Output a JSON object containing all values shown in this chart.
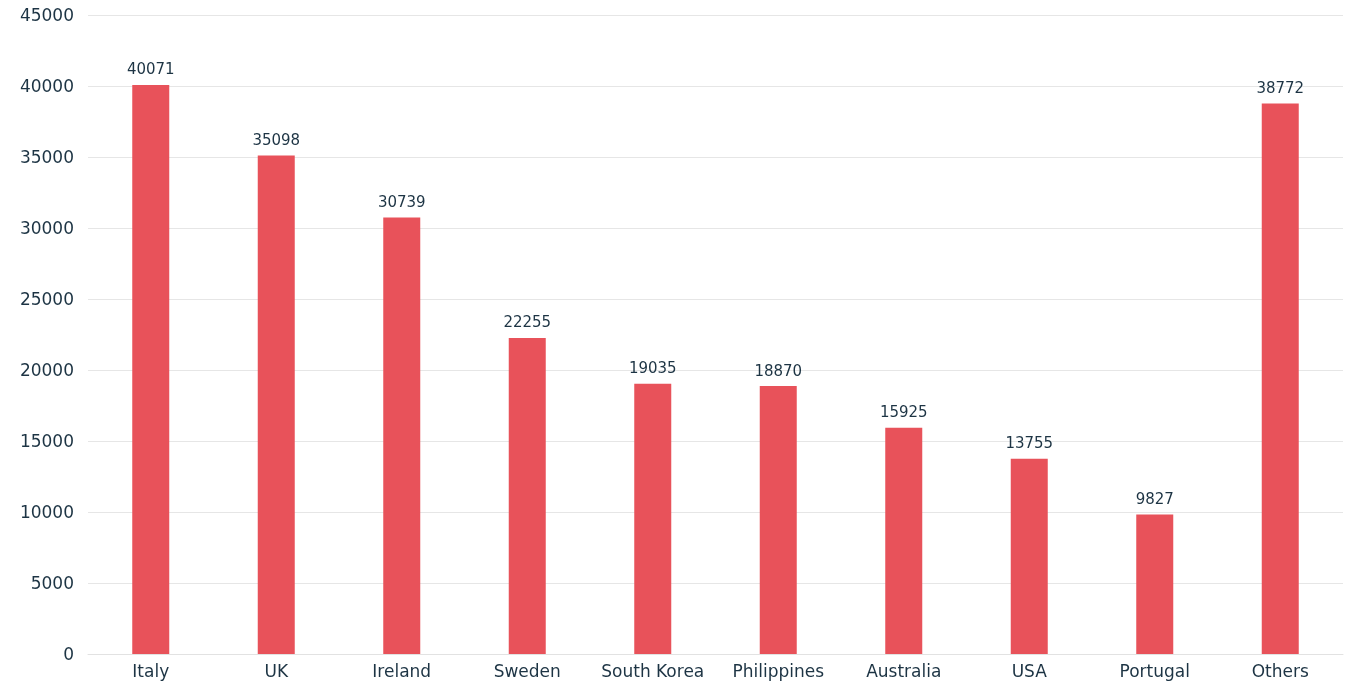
{
  "chart_data": {
    "type": "bar",
    "categories": [
      "Italy",
      "UK",
      "Ireland",
      "Sweden",
      "South Korea",
      "Philippines",
      "Australia",
      "USA",
      "Portugal",
      "Others"
    ],
    "values": [
      40071,
      35098,
      30739,
      22255,
      19035,
      18870,
      15925,
      13755,
      9827,
      38772
    ],
    "color": "#e8525a",
    "ylim": [
      0,
      45000
    ],
    "yticks": [
      0,
      5000,
      10000,
      15000,
      20000,
      25000,
      30000,
      35000,
      40000,
      45000
    ],
    "grid": "y",
    "data_labels": true
  }
}
